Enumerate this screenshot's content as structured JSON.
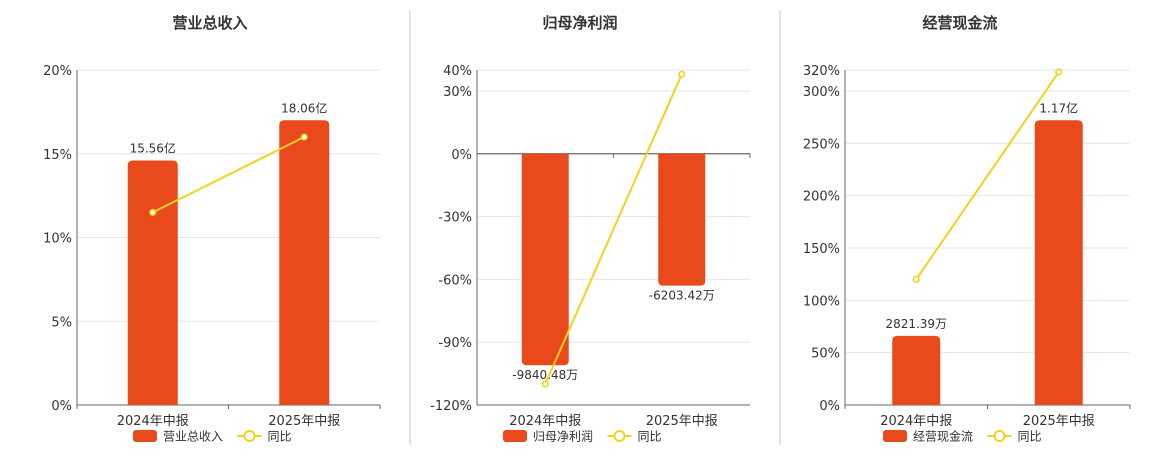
{
  "colors": {
    "bar": "#E84A1B",
    "line": "#F2D21E",
    "axis": "#666666",
    "grid": "#E6E6E6",
    "separator": "#C8C8C8"
  },
  "chart_data": [
    {
      "type": "bar",
      "title": "营业总收入",
      "categories": [
        "2024年中报",
        "2025年中报"
      ],
      "bar_values": [
        14.6,
        17.0
      ],
      "bar_labels": [
        "15.56亿",
        "18.06亿"
      ],
      "line_values": [
        11.5,
        16.0
      ],
      "yticks": [
        0,
        5,
        10,
        15,
        20
      ],
      "ytick_labels": [
        "0%",
        "5%",
        "10%",
        "15%",
        "20%"
      ],
      "ylim": [
        0,
        20
      ],
      "legend": [
        "营业总收入",
        "同比"
      ],
      "legend_position": "bottom",
      "grid": true
    },
    {
      "type": "bar",
      "title": "归母净利润",
      "categories": [
        "2024年中报",
        "2025年中报"
      ],
      "bar_values": [
        -101,
        -63
      ],
      "bar_labels": [
        "-9840.48万",
        "-6203.42万"
      ],
      "line_values": [
        -110,
        38
      ],
      "yticks": [
        -120,
        -90,
        -60,
        -30,
        0,
        30,
        40
      ],
      "ytick_labels": [
        "-120%",
        "-90%",
        "-60%",
        "-30%",
        "0%",
        "30%",
        "40%"
      ],
      "ylim": [
        -120,
        40
      ],
      "legend": [
        "归母净利润",
        "同比"
      ],
      "legend_position": "bottom",
      "grid": true
    },
    {
      "type": "bar",
      "title": "经营现金流",
      "categories": [
        "2024年中报",
        "2025年中报"
      ],
      "bar_values": [
        66,
        272
      ],
      "bar_labels": [
        "2821.39万",
        "1.17亿"
      ],
      "line_values": [
        120,
        318
      ],
      "yticks": [
        0,
        50,
        100,
        150,
        200,
        250,
        300,
        320
      ],
      "ytick_labels": [
        "0%",
        "50%",
        "100%",
        "150%",
        "200%",
        "250%",
        "300%",
        "320%"
      ],
      "ylim": [
        0,
        320
      ],
      "legend": [
        "经营现金流",
        "同比"
      ],
      "legend_position": "bottom",
      "grid": true
    }
  ]
}
